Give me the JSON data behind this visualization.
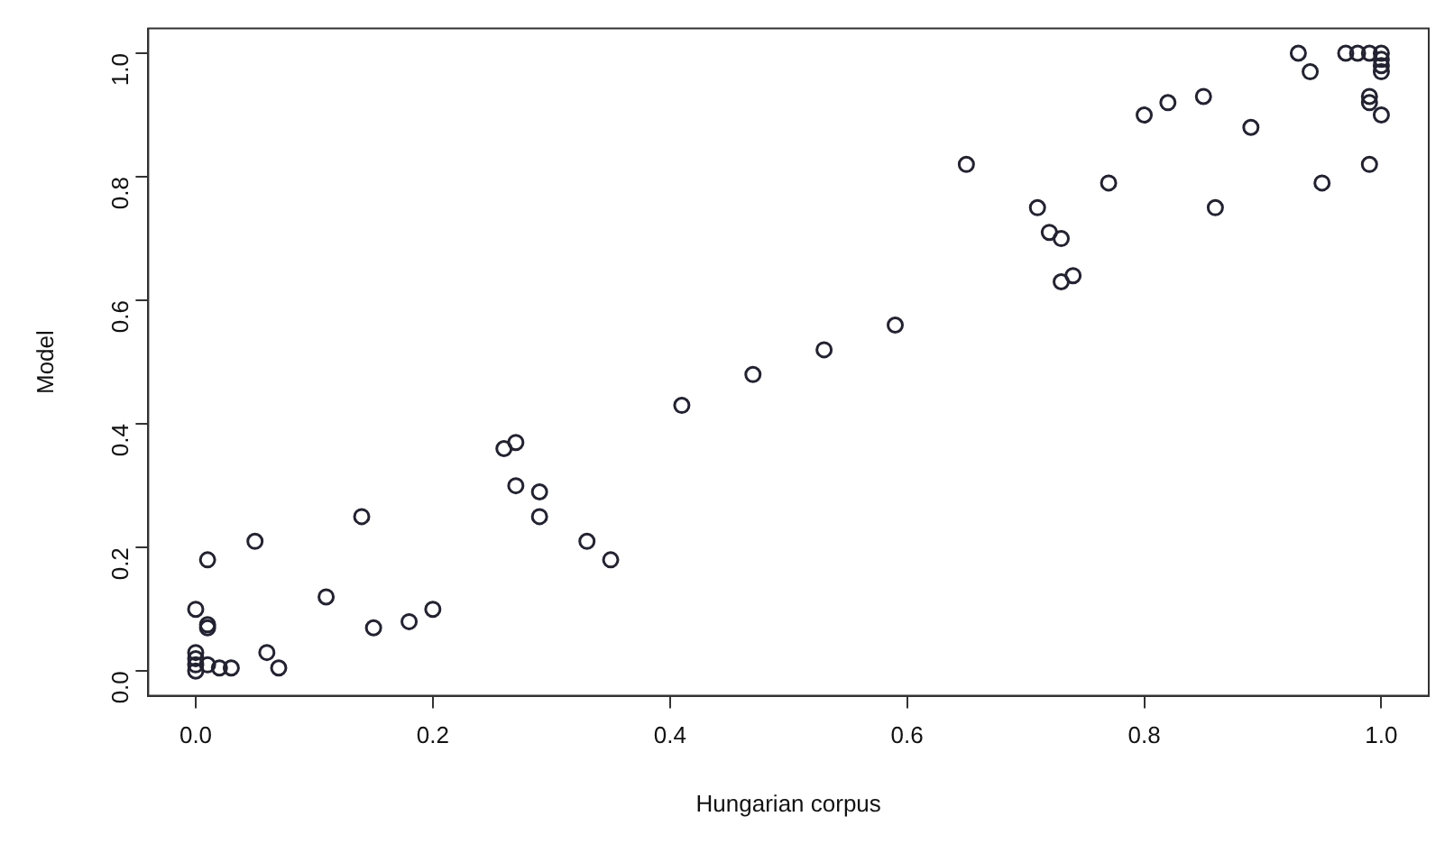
{
  "chart_data": {
    "type": "scatter",
    "xlabel": "Hungarian corpus",
    "ylabel": "Model",
    "xlim": [
      -0.04,
      1.04
    ],
    "ylim": [
      -0.04,
      1.04
    ],
    "xticks": [
      {
        "value": 0,
        "label": "0.0"
      },
      {
        "value": 0.2,
        "label": "0.2"
      },
      {
        "value": 0.4,
        "label": "0.4"
      },
      {
        "value": 0.6,
        "label": "0.6"
      },
      {
        "value": 0.8,
        "label": "0.8"
      },
      {
        "value": 1,
        "label": "1.0"
      }
    ],
    "yticks": [
      {
        "value": 0,
        "label": "0.0"
      },
      {
        "value": 0.2,
        "label": "0.2"
      },
      {
        "value": 0.4,
        "label": "0.4"
      },
      {
        "value": 0.6,
        "label": "0.6"
      },
      {
        "value": 0.8,
        "label": "0.8"
      },
      {
        "value": 1,
        "label": "1.0"
      }
    ],
    "marker": "circle",
    "grid": false,
    "legend": false,
    "series": [
      {
        "color": "#222233",
        "x": [
          0,
          0,
          0,
          0,
          0,
          0.01,
          0.01,
          0.01,
          0.01,
          0.02,
          0.03,
          0.05,
          0.06,
          0.07,
          0.11,
          0.14,
          0.15,
          0.18,
          0.2,
          0.26,
          0.27,
          0.27,
          0.29,
          0.29,
          0.33,
          0.35,
          0.41,
          0.47,
          0.53,
          0.59,
          0.65,
          0.71,
          0.72,
          0.73,
          0.73,
          0.74,
          0.77,
          0.8,
          0.82,
          0.85,
          0.86,
          0.89,
          0.93,
          0.94,
          0.95,
          0.97,
          0.98,
          0.99,
          0.99,
          0.99,
          0.99,
          1,
          1,
          1,
          1,
          1
        ],
        "values": [
          0,
          0.01,
          0.02,
          0.03,
          0.1,
          0.18,
          0.07,
          0.075,
          0.01,
          0.005,
          0.005,
          0.21,
          0.03,
          0.005,
          0.12,
          0.25,
          0.07,
          0.08,
          0.1,
          0.36,
          0.37,
          0.3,
          0.29,
          0.25,
          0.21,
          0.18,
          0.43,
          0.48,
          0.52,
          0.56,
          0.82,
          0.75,
          0.71,
          0.7,
          0.63,
          0.64,
          0.79,
          0.9,
          0.92,
          0.93,
          0.75,
          0.88,
          1,
          0.97,
          0.79,
          1,
          1,
          1,
          0.93,
          0.92,
          0.82,
          1,
          0.99,
          0.98,
          0.97,
          0.9
        ]
      }
    ]
  }
}
